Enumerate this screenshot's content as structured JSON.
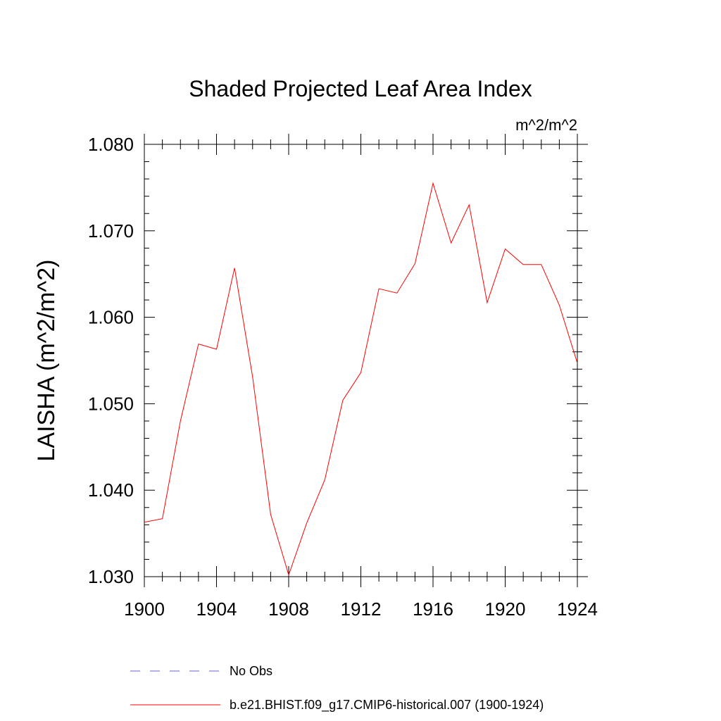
{
  "chart_data": {
    "type": "line",
    "title": "Shaded Projected Leaf Area Index",
    "units": "m^2/m^2",
    "ylabel": "LAISHA  (m^2/m^2)",
    "xlabel": "",
    "xlim": [
      1900,
      1924
    ],
    "ylim": [
      1.03,
      1.08
    ],
    "xticks": [
      1900,
      1904,
      1908,
      1912,
      1916,
      1920,
      1924
    ],
    "xtick_labels": [
      "1900",
      "1904",
      "1908",
      "1912",
      "1916",
      "1920",
      "1924"
    ],
    "yticks": [
      1.03,
      1.04,
      1.05,
      1.06,
      1.07,
      1.08
    ],
    "ytick_labels": [
      "1.030",
      "1.040",
      "1.050",
      "1.060",
      "1.070",
      "1.080"
    ],
    "x": [
      1900,
      1901,
      1902,
      1903,
      1904,
      1905,
      1906,
      1907,
      1908,
      1909,
      1910,
      1911,
      1912,
      1913,
      1914,
      1915,
      1916,
      1917,
      1918,
      1919,
      1920,
      1921,
      1922,
      1923,
      1924
    ],
    "series": [
      {
        "name": "b.e21.BHIST.f09_g17.CMIP6-historical.007 (1900-1924)",
        "color": "#ff0000",
        "values": [
          1.0363,
          1.0367,
          1.048,
          1.0569,
          1.0563,
          1.0657,
          1.0531,
          1.0372,
          1.0302,
          1.0362,
          1.0412,
          1.0504,
          1.0536,
          1.0633,
          1.0628,
          1.0662,
          1.0755,
          1.0686,
          1.073,
          1.0617,
          1.0679,
          1.0661,
          1.0661,
          1.0614,
          1.0547
        ]
      }
    ],
    "legend": [
      {
        "label": "No Obs",
        "style": "dashed",
        "color": "#6666cc"
      },
      {
        "label": "b.e21.BHIST.f09_g17.CMIP6-historical.007 (1900-1924)",
        "style": "solid",
        "color": "#ff0000"
      }
    ]
  }
}
